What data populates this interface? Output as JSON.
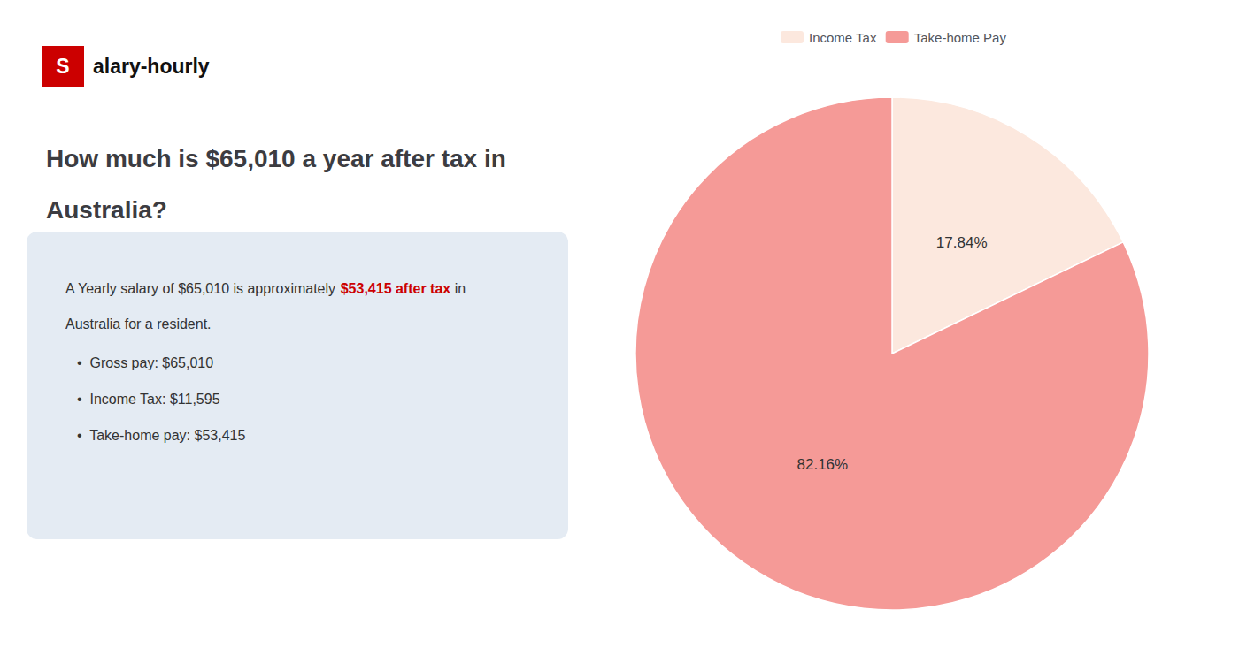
{
  "chart_data": {
    "type": "pie",
    "title": [
      "How much is $65,010 a year after tax in",
      "Australia?"
    ],
    "annotations": [
      [
        {
          "text": "S",
          "color": "#cc0000"
        },
        {
          "text": "alary-hourly"
        }
      ],
      [
        {
          "text": "A Yearly salary of $65,010 is approximately "
        },
        {
          "text": "$53,415 after tax",
          "color": "#cc0000"
        },
        {
          "text": " in"
        }
      ],
      [
        {
          "text": "Australia for a resident."
        }
      ],
      [
        {
          "text": "•  Gross pay: $65,010"
        }
      ],
      [
        {
          "text": "•  Income Tax: $11,595"
        }
      ],
      [
        {
          "text": "•  Take-home pay: $53,415"
        }
      ]
    ],
    "categories": [
      "Income Tax",
      "Take-home Pay"
    ],
    "values": [
      17.84,
      82.16
    ],
    "value_labels": [
      "17.84%",
      "82.16%"
    ],
    "colors": [
      "#fce8de",
      "#f59a97"
    ],
    "data_labels": true,
    "legend": "top"
  }
}
